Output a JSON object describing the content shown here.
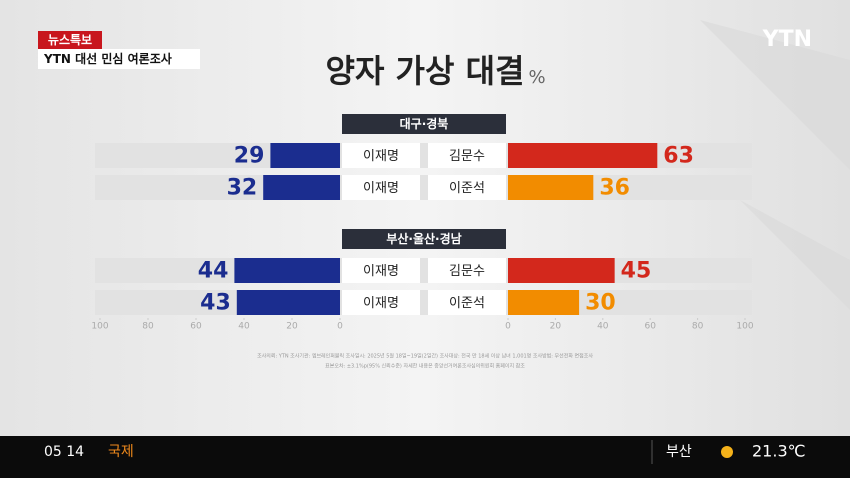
{
  "header": {
    "badge": "뉴스특보",
    "program": "YTN 대선 민심 여론조사",
    "logo": "YTN"
  },
  "chart_data": {
    "type": "butterfly",
    "title": "양자 가상 대결",
    "unit": "%",
    "groups": [
      {
        "name": "대구·경북",
        "left": {
          "names": [
            "이재명",
            "이재명"
          ],
          "values": [
            29,
            32
          ],
          "color": "#1b2d8f"
        },
        "right": {
          "names": [
            "김문수",
            "이준석"
          ],
          "values": [
            63,
            36
          ],
          "colors": [
            "#d3281c",
            "#f28c00"
          ]
        }
      },
      {
        "name": "부산·울산·경남",
        "left": {
          "names": [
            "이재명",
            "이재명"
          ],
          "values": [
            44,
            43
          ],
          "color": "#1b2d8f"
        },
        "right": {
          "names": [
            "김문수",
            "이준석"
          ],
          "values": [
            45,
            30
          ],
          "colors": [
            "#d3281c",
            "#f28c00"
          ]
        }
      }
    ],
    "left_xlim": [
      100,
      0
    ],
    "left_xticks": [
      100,
      80,
      60,
      40,
      20,
      0
    ],
    "right_xlim": [
      0,
      100
    ],
    "right_xticks": [
      0,
      20,
      40,
      60,
      80,
      100
    ]
  },
  "footnote": [
    "조사의뢰: YTN  조사기관: 엠브레인퍼블릭  조사일시: 2025년 5월 18일~19일(2일간)  조사대상: 전국 만 18세 이상 남녀 1,001명  조사방법: 무선전화 면접조사",
    "표본오차: ±3.1%p(95% 신뢰수준)  자세한 내용은 중앙선거여론조사심의위원회 홈페이지 참조"
  ],
  "ticker": {
    "time": "05 14",
    "section": "국제",
    "city": "부산",
    "temp": "21.3℃"
  }
}
